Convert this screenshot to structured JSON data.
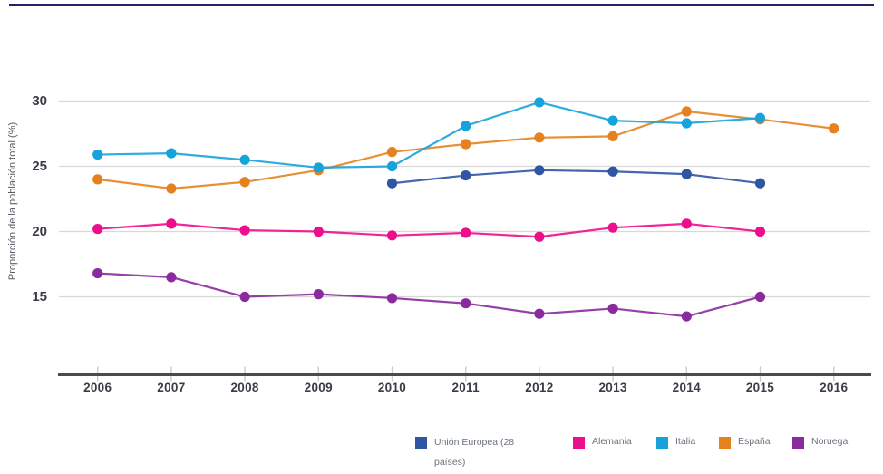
{
  "chart_data": {
    "type": "line",
    "title": "",
    "xlabel": "",
    "ylabel": "Proporción de la población total (%)",
    "x": [
      "2006",
      "2007",
      "2008",
      "2009",
      "2010",
      "2011",
      "2012",
      "2013",
      "2014",
      "2015",
      "2016"
    ],
    "yticks": [
      30,
      25,
      20,
      15
    ],
    "ylim": [
      12.5,
      31
    ],
    "grid": true,
    "legend_position": "bottom",
    "series": [
      {
        "name": "Unión Europea (28 países)",
        "color": "#2f55a4",
        "values": [
          null,
          null,
          null,
          null,
          23.7,
          24.3,
          24.7,
          24.6,
          24.4,
          23.7,
          null
        ]
      },
      {
        "name": "Alemania",
        "color": "#ec0e8b",
        "values": [
          20.2,
          20.6,
          20.1,
          20.0,
          19.7,
          19.9,
          19.6,
          20.3,
          20.6,
          20.0,
          null
        ]
      },
      {
        "name": "Italia",
        "color": "#16a3db",
        "values": [
          25.9,
          26.0,
          25.5,
          24.9,
          25.0,
          28.1,
          29.9,
          28.5,
          28.3,
          28.7,
          null
        ]
      },
      {
        "name": "España",
        "color": "#e5821f",
        "values": [
          24.0,
          23.3,
          23.8,
          24.7,
          26.1,
          26.7,
          27.2,
          27.3,
          29.2,
          28.6,
          27.9
        ]
      },
      {
        "name": "Noruega",
        "color": "#8a2b9d",
        "values": [
          16.8,
          16.5,
          15.0,
          15.2,
          14.9,
          14.5,
          13.7,
          14.1,
          13.5,
          15.0,
          null
        ]
      }
    ]
  },
  "colors": {
    "top_border": "#232268",
    "gridline": "#d8d8d8",
    "axis_line": "#4b4b4b",
    "axis_tick": "#cccccc",
    "tick_text": "#3c3c46",
    "legend_text": "#6b737d"
  }
}
